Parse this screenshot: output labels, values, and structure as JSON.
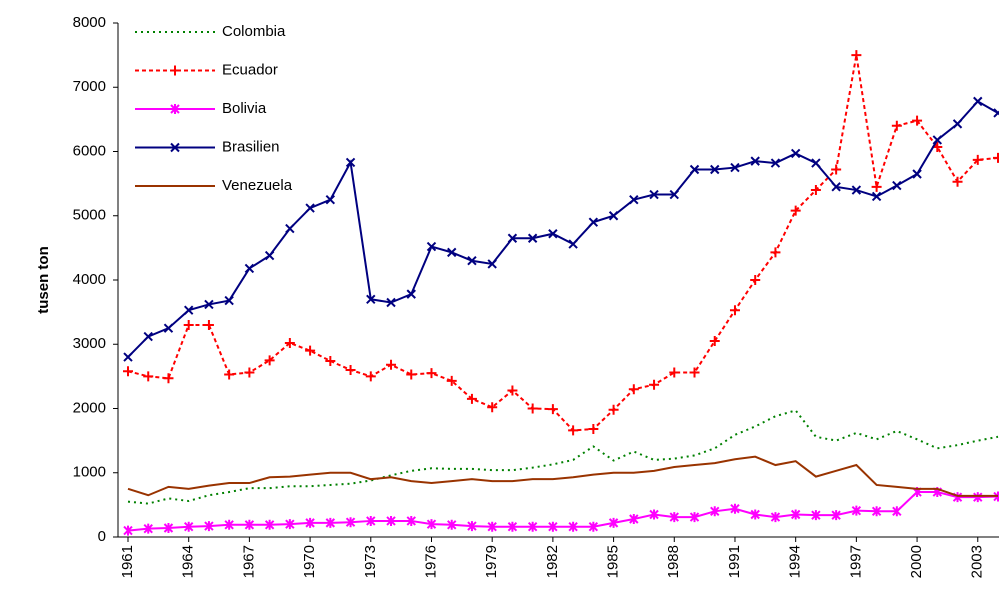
{
  "chart_data": {
    "type": "line",
    "y_label": "tusen ton",
    "x": [
      1961,
      1962,
      1963,
      1964,
      1965,
      1966,
      1967,
      1968,
      1969,
      1970,
      1971,
      1972,
      1973,
      1974,
      1975,
      1976,
      1977,
      1978,
      1979,
      1980,
      1981,
      1982,
      1983,
      1984,
      1985,
      1986,
      1987,
      1988,
      1989,
      1990,
      1991,
      1992,
      1993,
      1994,
      1995,
      1996,
      1997,
      1998,
      1999,
      2000,
      2001,
      2002,
      2003,
      2004
    ],
    "xlim": [
      1961,
      2004
    ],
    "xticks": [
      1961,
      1964,
      1967,
      1970,
      1973,
      1976,
      1979,
      1982,
      1985,
      1988,
      1991,
      1994,
      1997,
      2000,
      2003
    ],
    "ylim": [
      0,
      8000
    ],
    "yticks": [
      0,
      1000,
      2000,
      3000,
      4000,
      5000,
      6000,
      7000,
      8000
    ],
    "legend": "top-left",
    "series": [
      {
        "name": "Colombia",
        "color": "#008000",
        "dash": "dotted",
        "marker": "none",
        "values": [
          550,
          520,
          600,
          560,
          650,
          700,
          760,
          760,
          790,
          790,
          810,
          830,
          880,
          960,
          1030,
          1070,
          1060,
          1060,
          1040,
          1040,
          1080,
          1130,
          1200,
          1410,
          1190,
          1330,
          1200,
          1220,
          1270,
          1380,
          1590,
          1720,
          1880,
          1970,
          1560,
          1500,
          1620,
          1520,
          1650,
          1520,
          1380,
          1430,
          1500,
          1560
        ]
      },
      {
        "name": "Ecuador",
        "color": "#ff0000",
        "dash": "dashed",
        "marker": "plus",
        "values": [
          2580,
          2500,
          2470,
          3300,
          3300,
          2530,
          2560,
          2750,
          3020,
          2900,
          2740,
          2600,
          2500,
          2680,
          2530,
          2550,
          2430,
          2150,
          2020,
          2280,
          2000,
          1990,
          1660,
          1680,
          1980,
          2300,
          2370,
          2560,
          2560,
          3050,
          3530,
          4000,
          4430,
          5080,
          5400,
          5720,
          7500,
          5450,
          6400,
          6480,
          6070,
          5530,
          5870,
          5900
        ]
      },
      {
        "name": "Bolivia",
        "color": "#ff00ff",
        "dash": "solid",
        "marker": "star",
        "values": [
          100,
          130,
          140,
          160,
          170,
          190,
          190,
          190,
          200,
          220,
          220,
          230,
          250,
          250,
          250,
          200,
          190,
          170,
          160,
          160,
          160,
          160,
          160,
          160,
          220,
          280,
          350,
          310,
          310,
          400,
          440,
          350,
          310,
          350,
          340,
          340,
          410,
          400,
          400,
          700,
          700,
          620,
          620,
          630
        ]
      },
      {
        "name": "Brasilien",
        "color": "#000080",
        "dash": "solid",
        "marker": "cross",
        "values": [
          2800,
          3120,
          3250,
          3530,
          3620,
          3680,
          4180,
          4380,
          4800,
          5120,
          5250,
          5830,
          3700,
          3650,
          3780,
          4520,
          4430,
          4300,
          4250,
          4650,
          4650,
          4720,
          4560,
          4900,
          5000,
          5250,
          5330,
          5330,
          5720,
          5720,
          5750,
          5850,
          5820,
          5970,
          5820,
          5450,
          5400,
          5300,
          5470,
          5650,
          6180,
          6430,
          6780,
          6600
        ]
      },
      {
        "name": "Venezuela",
        "color": "#993300",
        "dash": "solid",
        "marker": "none",
        "values": [
          750,
          650,
          780,
          750,
          800,
          840,
          840,
          930,
          940,
          970,
          1000,
          1000,
          900,
          930,
          870,
          840,
          870,
          900,
          870,
          870,
          900,
          900,
          930,
          970,
          1000,
          1000,
          1030,
          1090,
          1120,
          1150,
          1210,
          1250,
          1120,
          1180,
          940,
          1030,
          1120,
          810,
          780,
          750,
          750,
          640,
          640,
          640
        ]
      }
    ]
  }
}
